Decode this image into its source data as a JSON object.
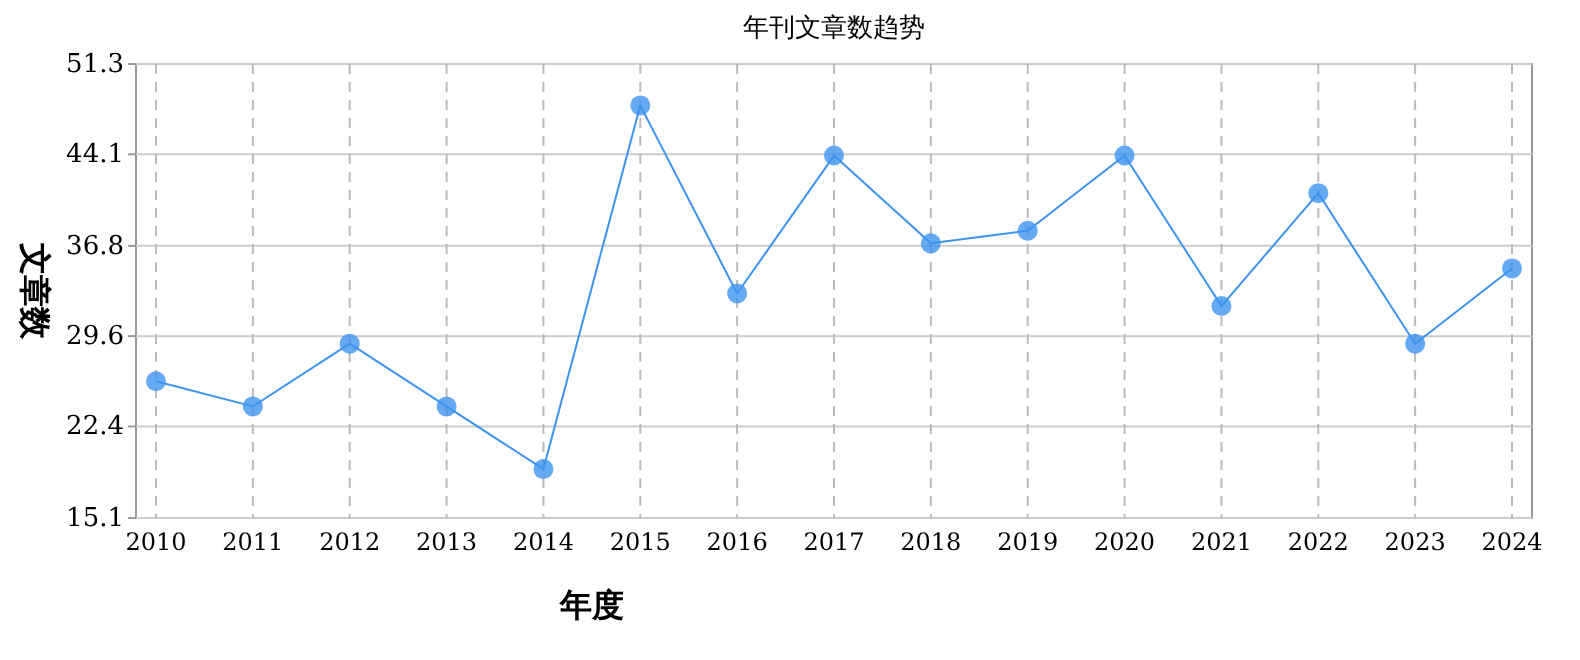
{
  "chart_data": {
    "type": "line",
    "title": "年刊文章数趋势",
    "xlabel": "年度",
    "ylabel": "文章数",
    "categories": [
      "2010",
      "2011",
      "2012",
      "2013",
      "2014",
      "2015",
      "2016",
      "2017",
      "2018",
      "2019",
      "2020",
      "2021",
      "2022",
      "2023",
      "2024"
    ],
    "series": [
      {
        "color": "#3d93ee",
        "values": [
          26,
          24,
          29,
          24,
          19,
          48,
          33,
          44,
          37,
          38,
          44,
          32,
          41,
          29,
          35
        ]
      }
    ],
    "ylim": [
      15.1,
      51.3
    ],
    "yticks": [
      15.1,
      22.4,
      29.6,
      36.8,
      44.1,
      51.3
    ],
    "grid": true,
    "marker": "circle",
    "line_style": "solid"
  }
}
